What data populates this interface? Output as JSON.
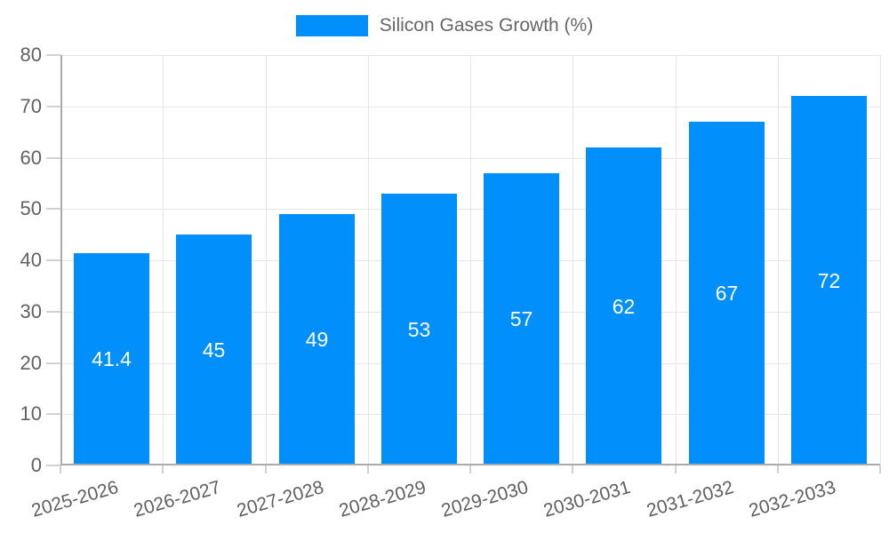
{
  "background_color": "#ffffff",
  "legend": {
    "label": "Silicon Gases Growth (%)",
    "position": "top"
  },
  "chart_data": {
    "type": "bar",
    "categories": [
      "2025-2026",
      "2026-2027",
      "2027-2028",
      "2028-2029",
      "2029-2030",
      "2030-2031",
      "2031-2032",
      "2032-2033"
    ],
    "series": [
      {
        "name": "Silicon Gases Growth (%)",
        "color": "#008FFB",
        "values": [
          41.4,
          45,
          49,
          53,
          57,
          62,
          67,
          72
        ]
      }
    ],
    "data_labels": [
      "41.4",
      "45",
      "49",
      "53",
      "57",
      "62",
      "67",
      "72"
    ],
    "ylim": [
      0,
      80
    ],
    "y_tick_step": 10,
    "y_tick_labels": [
      "0",
      "10",
      "20",
      "30",
      "40",
      "50",
      "60",
      "70",
      "80"
    ],
    "grid": true,
    "legend_position": "top",
    "x_label_rotation_deg": -16,
    "colors": {
      "bar": "#008FFB",
      "grid": "#e6e6e6",
      "axis": "#ababab",
      "tick": "#d2d2d2",
      "tick_text": "#616161",
      "data_label": "#ffffff",
      "legend_text": "#666666"
    }
  }
}
